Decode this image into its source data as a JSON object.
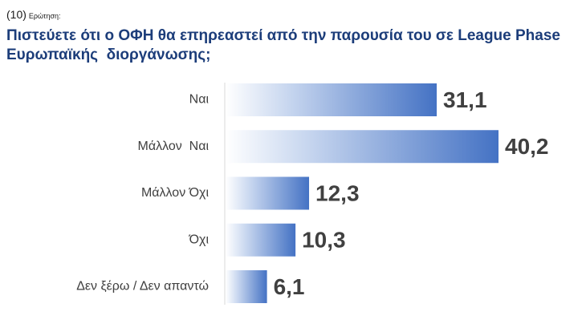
{
  "question": {
    "number": "(10)",
    "label": "Ερώτηση:",
    "title_lines": [
      "Πιστεύετε ότι ο ΟΦΗ θα επηρεαστεί από την παρουσία του σε League Phase",
      "Ευρωπαϊκής  διοργάνωσης;"
    ]
  },
  "chart_data": {
    "type": "bar",
    "orientation": "horizontal",
    "categories": [
      "Ναι",
      "Μάλλον  Ναι",
      "Μάλλον Όχι",
      "Όχι",
      "Δεν ξέρω / Δεν απαντώ"
    ],
    "values": [
      31.1,
      40.2,
      12.3,
      10.3,
      6.1
    ],
    "value_labels": [
      "31,1",
      "40,2",
      "12,3",
      "10,3",
      "6,1"
    ],
    "xlim": [
      0,
      40.2
    ],
    "grid": false,
    "legend": "none",
    "colors": {
      "bar_start": "#ffffff",
      "bar_end": "#4472c4",
      "axis": "#d9d9d9",
      "category_text": "#404040",
      "value_text": "#404040",
      "title_text": "#1c3d7a"
    }
  }
}
